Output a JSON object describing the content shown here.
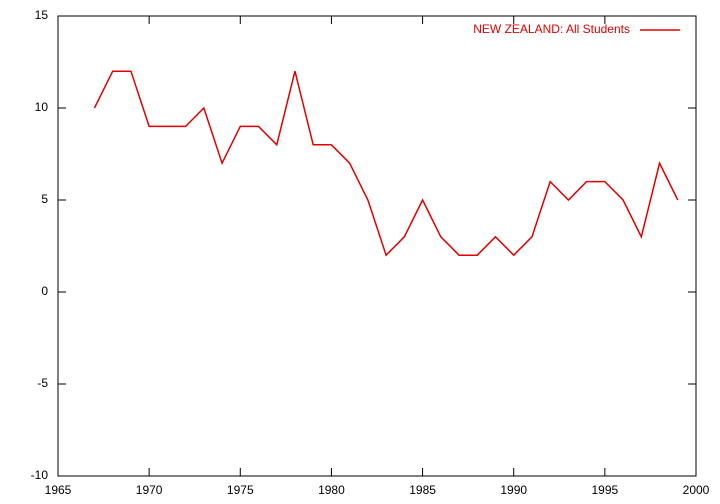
{
  "chart_data": {
    "type": "line",
    "x": [
      1967,
      1968,
      1969,
      1970,
      1971,
      1972,
      1973,
      1974,
      1975,
      1976,
      1977,
      1978,
      1979,
      1980,
      1981,
      1982,
      1983,
      1984,
      1985,
      1986,
      1987,
      1988,
      1989,
      1990,
      1991,
      1992,
      1993,
      1994,
      1995,
      1996,
      1997,
      1998,
      1999
    ],
    "series": [
      {
        "name": "NEW ZEALAND: All Students",
        "color": "#e00000",
        "values": [
          10,
          12,
          12,
          9,
          9,
          9,
          10,
          7,
          9,
          9,
          8,
          12,
          8,
          8,
          7,
          5,
          2,
          3,
          5,
          3,
          2,
          2,
          3,
          2,
          3,
          6,
          5,
          6,
          6,
          5,
          3,
          7,
          5
        ]
      }
    ],
    "xlim": [
      1965,
      2000
    ],
    "xticks": [
      1965,
      1970,
      1975,
      1980,
      1985,
      1990,
      1995,
      2000
    ],
    "ylim": [
      -10,
      15
    ],
    "yticks": [
      -10,
      -5,
      0,
      5,
      10,
      15
    ],
    "grid": false,
    "legend": "top-right"
  }
}
